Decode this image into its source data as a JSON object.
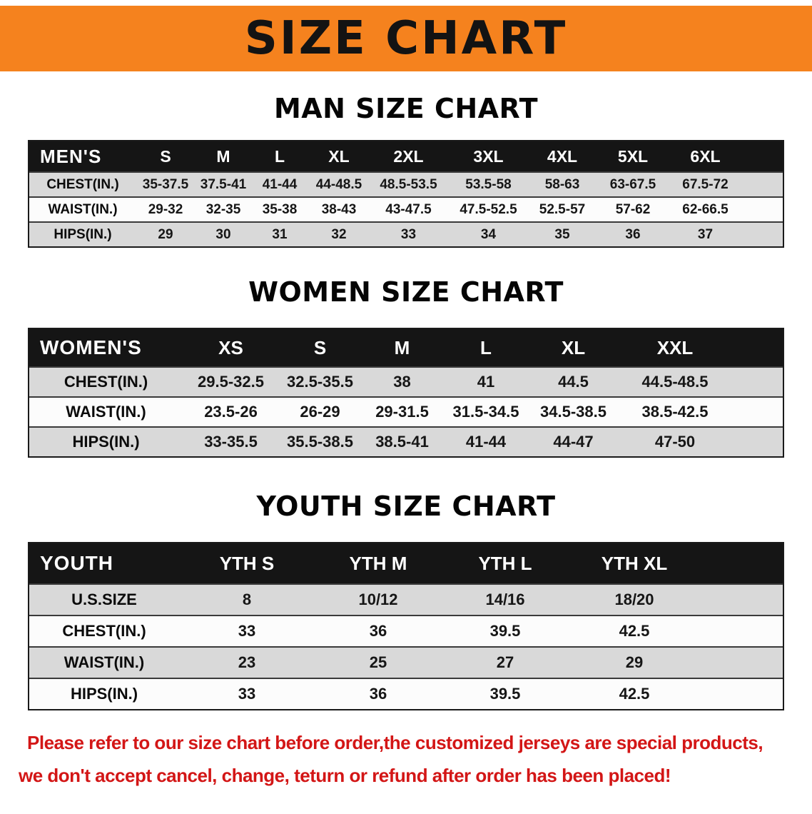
{
  "banner": {
    "title": "SIZE CHART"
  },
  "sections": [
    {
      "id": "men",
      "heading": "MAN SIZE CHART",
      "table": {
        "header": [
          "MEN'S",
          "S",
          "M",
          "L",
          "XL",
          "2XL",
          "3XL",
          "4XL",
          "5XL",
          "6XL"
        ],
        "rows": [
          [
            "CHEST(IN.)",
            "35-37.5",
            "37.5-41",
            "41-44",
            "44-48.5",
            "48.5-53.5",
            "53.5-58",
            "58-63",
            "63-67.5",
            "67.5-72"
          ],
          [
            "WAIST(IN.)",
            "29-32",
            "32-35",
            "35-38",
            "38-43",
            "43-47.5",
            "47.5-52.5",
            "52.5-57",
            "57-62",
            "62-66.5"
          ],
          [
            "HIPS(IN.)",
            "29",
            "30",
            "31",
            "32",
            "33",
            "34",
            "35",
            "36",
            "37"
          ]
        ]
      }
    },
    {
      "id": "women",
      "heading": "WOMEN SIZE CHART",
      "table": {
        "header": [
          "WOMEN'S",
          "XS",
          "S",
          "M",
          "L",
          "XL",
          "XXL"
        ],
        "rows": [
          [
            "CHEST(IN.)",
            "29.5-32.5",
            "32.5-35.5",
            "38",
            "41",
            "44.5",
            "44.5-48.5"
          ],
          [
            "WAIST(IN.)",
            "23.5-26",
            "26-29",
            "29-31.5",
            "31.5-34.5",
            "34.5-38.5",
            "38.5-42.5"
          ],
          [
            "HIPS(IN.)",
            "33-35.5",
            "35.5-38.5",
            "38.5-41",
            "41-44",
            "44-47",
            "47-50"
          ]
        ]
      }
    },
    {
      "id": "youth",
      "heading": "YOUTH SIZE CHART",
      "table": {
        "header": [
          "YOUTH",
          "YTH S",
          "YTH M",
          "YTH L",
          "YTH XL"
        ],
        "rows": [
          [
            "U.S.SIZE",
            "8",
            "10/12",
            "14/16",
            "18/20"
          ],
          [
            "CHEST(IN.)",
            "33",
            "36",
            "39.5",
            "42.5"
          ],
          [
            "WAIST(IN.)",
            "23",
            "25",
            "27",
            "29"
          ],
          [
            "HIPS(IN.)",
            "33",
            "36",
            "39.5",
            "42.5"
          ]
        ]
      }
    }
  ],
  "disclaimer": {
    "lines": [
      "Please refer to our size chart before order,the customized jerseys are special products,",
      "we don't accept cancel, change, teturn or refund after order has been placed!"
    ]
  },
  "colors": {
    "banner_orange": "#F5821E",
    "table_header_black": "#151515",
    "row_gray": "#D9D9D9",
    "row_white": "#FCFCFC",
    "disclaimer_red": "#D31616"
  }
}
